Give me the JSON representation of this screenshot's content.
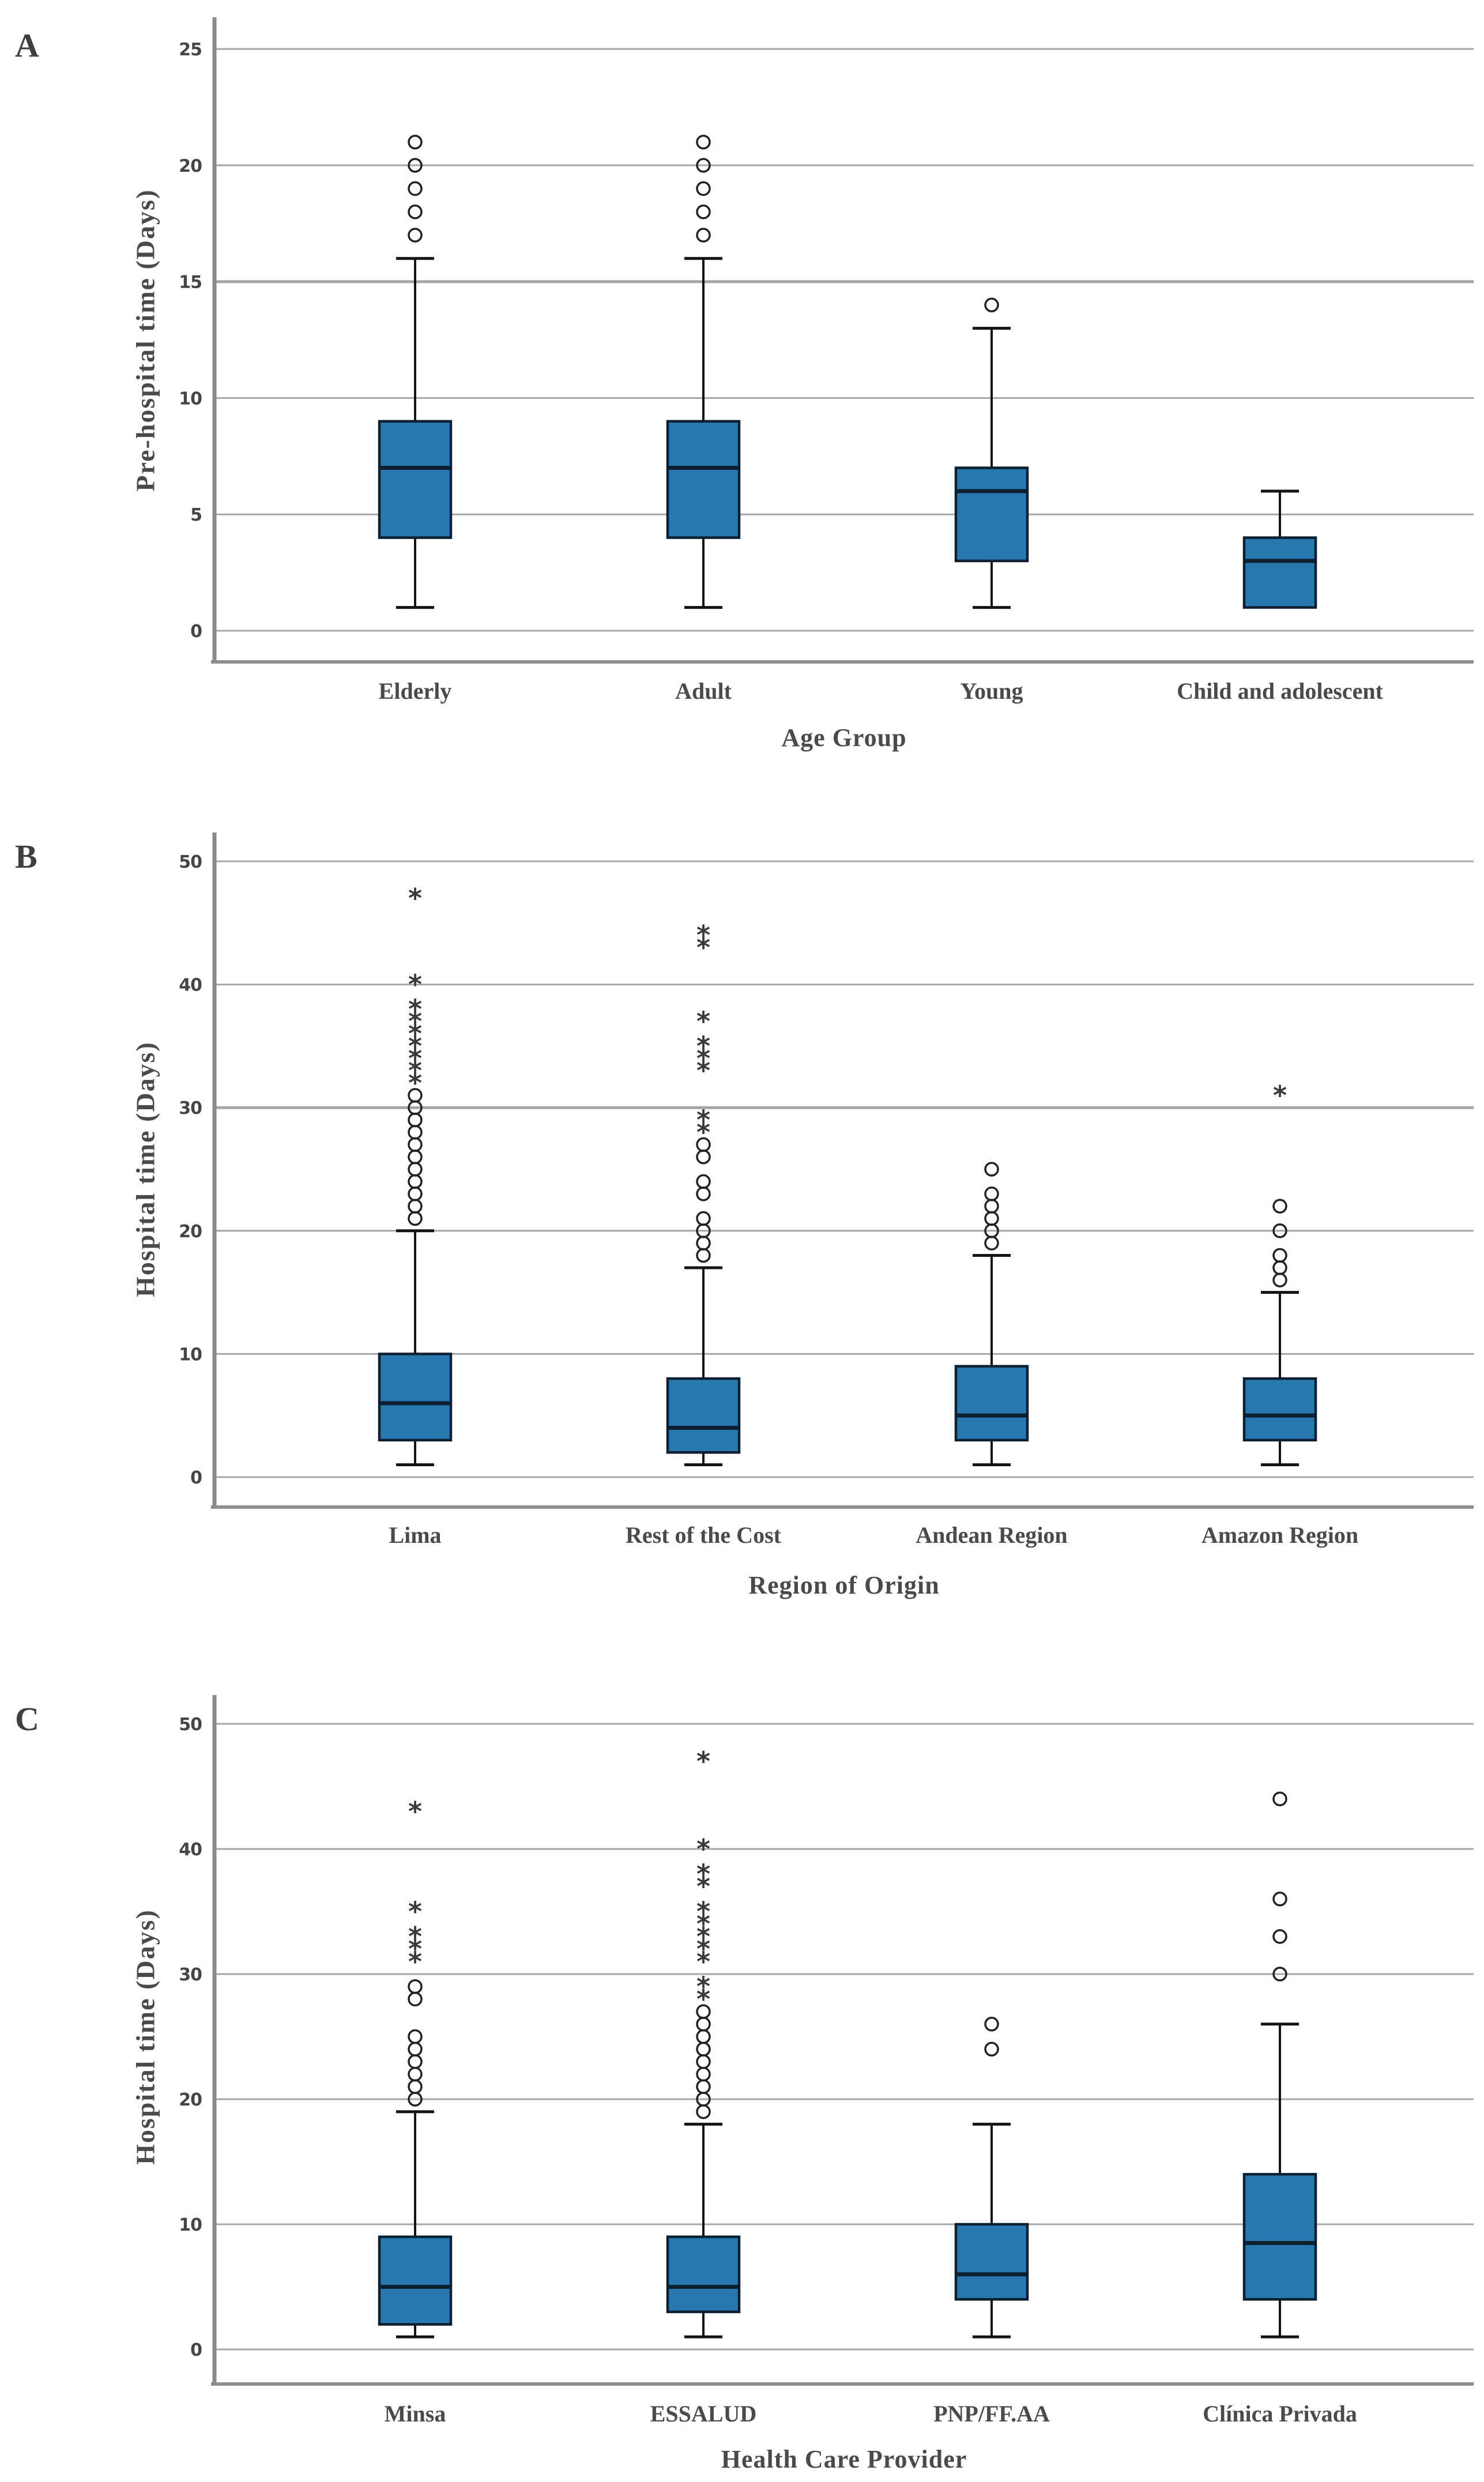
{
  "figure": {
    "background": "#ffffff",
    "box_fill": "#2878b0",
    "box_border": "#0d2031",
    "whisker_color": "#141414",
    "gridline_color": "#a6a6a6",
    "frame_color": "#8f8f8f",
    "axis_color": "#8a8a8a",
    "title_text_color": "#4a4a4a",
    "tick_text_color": "#454545",
    "outlier_color": "#222222",
    "mild_outlier_glyph": "circle",
    "extreme_outlier_glyph": "asterisk"
  },
  "chart_data": [
    {
      "type": "boxplot",
      "panel_label": "A",
      "ylabel": "Pre-hospital time (Days)",
      "xlabel": "Age Group",
      "ylim": [
        0,
        25
      ],
      "y_ticks": [
        0,
        5,
        10,
        15,
        20,
        25
      ],
      "bold_gridline": 15,
      "grid": true,
      "legend": "none",
      "categories": [
        "Elderly",
        "Adult",
        "Young",
        "Child and adolescent"
      ],
      "series": [
        {
          "category": "Elderly",
          "whisker_low": 1,
          "q1": 4,
          "median": 7,
          "q3": 9,
          "whisker_high": 16,
          "outliers_mild": [
            17,
            18,
            19,
            20,
            21
          ],
          "outliers_extreme": []
        },
        {
          "category": "Adult",
          "whisker_low": 1,
          "q1": 4,
          "median": 7,
          "q3": 9,
          "whisker_high": 16,
          "outliers_mild": [
            17,
            18,
            19,
            20,
            21
          ],
          "outliers_extreme": []
        },
        {
          "category": "Young",
          "whisker_low": 1,
          "q1": 3,
          "median": 6,
          "q3": 7,
          "whisker_high": 13,
          "outliers_mild": [
            14
          ],
          "outliers_extreme": []
        },
        {
          "category": "Child and adolescent",
          "whisker_low": null,
          "q1": 1,
          "median": 3,
          "q3": 4,
          "whisker_high": 6,
          "outliers_mild": [],
          "outliers_extreme": []
        }
      ]
    },
    {
      "type": "boxplot",
      "panel_label": "B",
      "ylabel": "Hospital time (Days)",
      "xlabel": "Region of Origin",
      "ylim": [
        0,
        50
      ],
      "y_ticks": [
        0,
        10,
        20,
        30,
        40,
        50
      ],
      "bold_gridline": 30,
      "grid": true,
      "legend": "none",
      "categories": [
        "Lima",
        "Rest of the Cost",
        "Andean Region",
        "Amazon Region"
      ],
      "series": [
        {
          "category": "Lima",
          "whisker_low": 1,
          "q1": 3,
          "median": 6,
          "q3": 10,
          "whisker_high": 20,
          "outliers_mild": [
            21,
            22,
            23,
            24,
            25,
            26,
            27,
            28,
            29,
            30,
            31
          ],
          "outliers_extreme": [
            32,
            33,
            34,
            35,
            36,
            37,
            38,
            40,
            47
          ]
        },
        {
          "category": "Rest of the Cost",
          "whisker_low": 1,
          "q1": 2,
          "median": 4,
          "q3": 8,
          "whisker_high": 17,
          "outliers_mild": [
            18,
            19,
            20,
            21,
            23,
            24,
            26,
            27
          ],
          "outliers_extreme": [
            28,
            29,
            33,
            34,
            35,
            37,
            43,
            44
          ]
        },
        {
          "category": "Andean Region",
          "whisker_low": 1,
          "q1": 3,
          "median": 5,
          "q3": 9,
          "whisker_high": 18,
          "outliers_mild": [
            19,
            20,
            21,
            22,
            23,
            25
          ],
          "outliers_extreme": []
        },
        {
          "category": "Amazon Region",
          "whisker_low": 1,
          "q1": 3,
          "median": 5,
          "q3": 8,
          "whisker_high": 15,
          "outliers_mild": [
            16,
            17,
            18,
            20,
            22
          ],
          "outliers_extreme": [
            31
          ]
        }
      ]
    },
    {
      "type": "boxplot",
      "panel_label": "C",
      "ylabel": "Hospital time (Days)",
      "xlabel": "Health Care Provider",
      "ylim": [
        0,
        50
      ],
      "y_ticks": [
        0,
        10,
        20,
        30,
        40,
        50
      ],
      "bold_gridline": null,
      "grid": true,
      "legend": "none",
      "categories": [
        "Minsa",
        "ESSALUD",
        "PNP/FF.AA",
        "Clínica Privada"
      ],
      "series": [
        {
          "category": "Minsa",
          "whisker_low": 1,
          "q1": 2,
          "median": 5,
          "q3": 9,
          "whisker_high": 19,
          "outliers_mild": [
            20,
            21,
            22,
            23,
            24,
            25,
            28,
            29
          ],
          "outliers_extreme": [
            31,
            32,
            33,
            35,
            43
          ]
        },
        {
          "category": "ESSALUD",
          "whisker_low": 1,
          "q1": 3,
          "median": 5,
          "q3": 9,
          "whisker_high": 18,
          "outliers_mild": [
            19,
            20,
            21,
            22,
            23,
            24,
            25,
            26,
            27
          ],
          "outliers_extreme": [
            28,
            29,
            31,
            32,
            33,
            34,
            35,
            37,
            38,
            40,
            47
          ]
        },
        {
          "category": "PNP/FF.AA",
          "whisker_low": 1,
          "q1": 4,
          "median": 6,
          "q3": 10,
          "whisker_high": 18,
          "outliers_mild": [
            24,
            26
          ],
          "outliers_extreme": []
        },
        {
          "category": "Clínica Privada",
          "whisker_low": 1,
          "q1": 4,
          "median": 8.5,
          "q3": 14,
          "whisker_high": 26,
          "outliers_mild": [
            30,
            33,
            36,
            44
          ],
          "outliers_extreme": []
        }
      ]
    }
  ]
}
